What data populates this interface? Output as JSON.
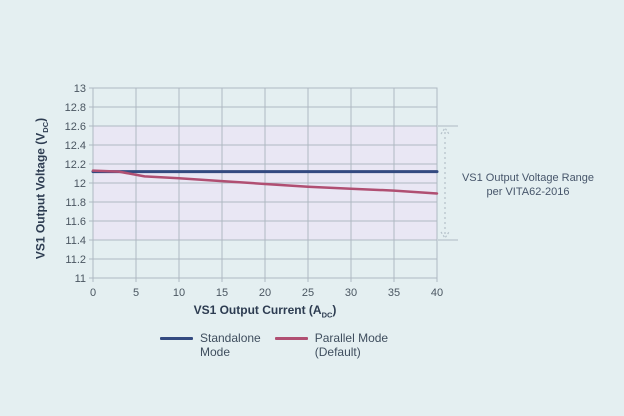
{
  "chart_data": {
    "type": "line",
    "title": "",
    "xlabel": "VS1 Output Current (A_DC)",
    "ylabel": "VS1 Output Voltage (V_DC)",
    "xlim": [
      0,
      40
    ],
    "ylim": [
      11,
      13
    ],
    "xticks": [
      "0",
      "5",
      "10",
      "15",
      "20",
      "25",
      "30",
      "35",
      "40"
    ],
    "yticks": [
      "13",
      "12.8",
      "12.6",
      "12.4",
      "12.2",
      "12",
      "11.8",
      "11.6",
      "11.4",
      "11.2",
      "11"
    ],
    "grid": true,
    "gridline_color": "#aeb9c2",
    "plot_background": "transparent",
    "band": {
      "from": 11.4,
      "to": 12.6,
      "color": "#e9e7f4",
      "arrow_color": "#b4c0c9"
    },
    "legend_position": "bottom-center",
    "series": [
      {
        "name": "Standalone Mode",
        "legend_line1": "Standalone",
        "legend_line2": "Mode",
        "color": "#334a80",
        "width": 3,
        "points": [
          [
            0,
            12.12
          ],
          [
            40,
            12.12
          ]
        ]
      },
      {
        "name": "Parallel Mode (Default)",
        "legend_line1": "Parallel Mode",
        "legend_line2": "(Default)",
        "color": "#b04f72",
        "width": 2.5,
        "points": [
          [
            0,
            12.13
          ],
          [
            3,
            12.12
          ],
          [
            6,
            12.07
          ],
          [
            10,
            12.05
          ],
          [
            15,
            12.02
          ],
          [
            20,
            11.99
          ],
          [
            25,
            11.96
          ],
          [
            30,
            11.94
          ],
          [
            35,
            11.92
          ],
          [
            40,
            11.89
          ]
        ]
      }
    ]
  },
  "y_axis": {
    "title_main": "VS1 Output Voltage (V",
    "title_sub": "DC",
    "title_close": ")"
  },
  "x_axis": {
    "title_main": "VS1 Output Current (A",
    "title_sub": "DC",
    "title_close": ")"
  },
  "annotation": {
    "line1": "VS1 Output Voltage Range",
    "line2": "per VITA62-2016"
  },
  "colors": {
    "page_background": "#e4eff1",
    "tick_text": "#4a5661",
    "axis_title_text": "#2d3c51",
    "annotation_text": "#47566b"
  }
}
